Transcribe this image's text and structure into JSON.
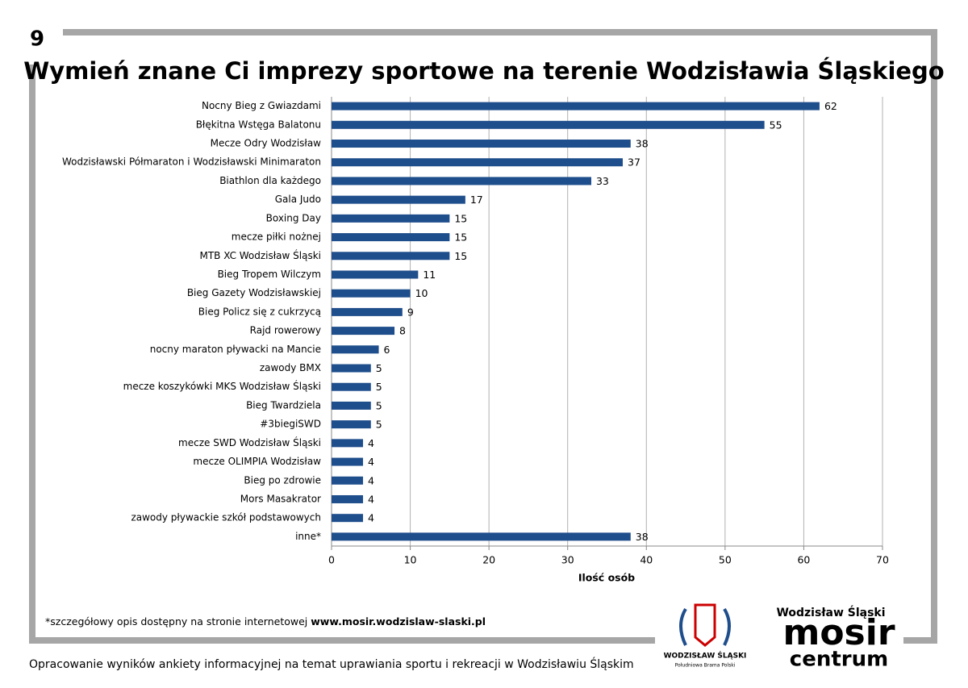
{
  "page_number": "9",
  "chart_data": {
    "type": "barh",
    "title": "Wymień znane Ci imprezy sportowe na terenie Wodzisławia Śląskiego",
    "xlabel": "Ilość osób",
    "categories": [
      "Nocny Bieg z Gwiazdami",
      "Błękitna Wstęga Balatonu",
      "Mecze Odry Wodzisław",
      "Wodzisławski Półmaraton i Wodzisławski Minimaraton",
      "Biathlon dla każdego",
      "Gala Judo",
      "Boxing Day",
      "mecze piłki nożnej",
      "MTB XC Wodzisław Śląski",
      "Bieg Tropem Wilczym",
      "Bieg Gazety Wodzisławskiej",
      "Bieg Policz się z cukrzycą",
      "Rajd rowerowy",
      "nocny maraton pływacki na Mancie",
      "zawody BMX",
      "mecze koszykówki MKS Wodzisław Śląski",
      "Bieg Twardziela",
      "#3biegiSWD",
      "mecze SWD Wodzisław Śląski",
      "mecze OLIMPIA Wodzisław",
      "Bieg po zdrowie",
      "Mors Masakrator",
      "zawody pływackie szkół podstawowych",
      "inne*"
    ],
    "values": [
      62,
      55,
      38,
      37,
      33,
      17,
      15,
      15,
      15,
      11,
      10,
      9,
      8,
      6,
      5,
      5,
      5,
      5,
      4,
      4,
      4,
      4,
      4,
      38
    ],
    "color": "#1f4e8c",
    "xlim": [
      0,
      70
    ],
    "xticks": [
      0,
      10,
      20,
      30,
      40,
      50,
      60,
      70
    ],
    "grid": true
  },
  "footnote": {
    "text": "*szczegółowy opis dostępny na stronie internetowej ",
    "link": "www.mosir.wodzislaw-slaski.pl"
  },
  "footer": "Opracowanie wyników ankiety informacyjnej na temat uprawiania sportu i rekreacji w Wodzisławiu Śląskim",
  "logos": {
    "city": "WODZISŁAW ŚLĄSKI",
    "city_motto": "Południowa Brama Polski",
    "mosir_city": "Wodzisław Śląski",
    "mosir": "mosir",
    "centrum": "centrum"
  }
}
